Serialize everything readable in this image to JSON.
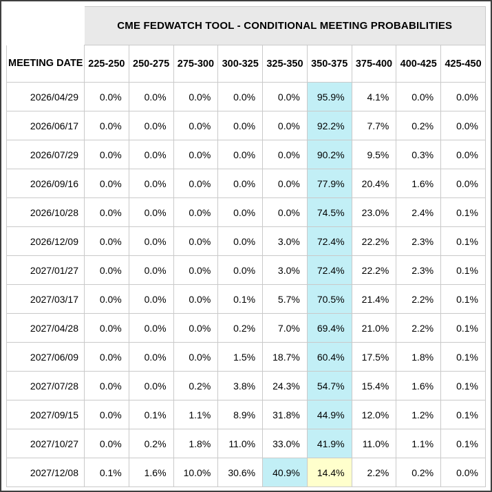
{
  "chart_data": {
    "type": "table",
    "title": "CME FEDWATCH TOOL - CONDITIONAL MEETING PROBABILITIES",
    "date_column_header": "MEETING DATE",
    "rate_bin_headers": [
      "225-250",
      "250-275",
      "275-300",
      "300-325",
      "325-350",
      "350-375",
      "375-400",
      "400-425",
      "425-450"
    ],
    "rows": [
      {
        "date": "2026/04/29",
        "values": [
          "0.0%",
          "0.0%",
          "0.0%",
          "0.0%",
          "0.0%",
          "95.9%",
          "4.1%",
          "0.0%",
          "0.0%"
        ],
        "highlights": {
          "5": "cyan"
        }
      },
      {
        "date": "2026/06/17",
        "values": [
          "0.0%",
          "0.0%",
          "0.0%",
          "0.0%",
          "0.0%",
          "92.2%",
          "7.7%",
          "0.2%",
          "0.0%"
        ],
        "highlights": {
          "5": "cyan"
        }
      },
      {
        "date": "2026/07/29",
        "values": [
          "0.0%",
          "0.0%",
          "0.0%",
          "0.0%",
          "0.0%",
          "90.2%",
          "9.5%",
          "0.3%",
          "0.0%"
        ],
        "highlights": {
          "5": "cyan"
        }
      },
      {
        "date": "2026/09/16",
        "values": [
          "0.0%",
          "0.0%",
          "0.0%",
          "0.0%",
          "0.0%",
          "77.9%",
          "20.4%",
          "1.6%",
          "0.0%"
        ],
        "highlights": {
          "5": "cyan"
        }
      },
      {
        "date": "2026/10/28",
        "values": [
          "0.0%",
          "0.0%",
          "0.0%",
          "0.0%",
          "0.0%",
          "74.5%",
          "23.0%",
          "2.4%",
          "0.1%"
        ],
        "highlights": {
          "5": "cyan"
        }
      },
      {
        "date": "2026/12/09",
        "values": [
          "0.0%",
          "0.0%",
          "0.0%",
          "0.0%",
          "3.0%",
          "72.4%",
          "22.2%",
          "2.3%",
          "0.1%"
        ],
        "highlights": {
          "5": "cyan"
        }
      },
      {
        "date": "2027/01/27",
        "values": [
          "0.0%",
          "0.0%",
          "0.0%",
          "0.0%",
          "3.0%",
          "72.4%",
          "22.2%",
          "2.3%",
          "0.1%"
        ],
        "highlights": {
          "5": "cyan"
        }
      },
      {
        "date": "2027/03/17",
        "values": [
          "0.0%",
          "0.0%",
          "0.0%",
          "0.1%",
          "5.7%",
          "70.5%",
          "21.4%",
          "2.2%",
          "0.1%"
        ],
        "highlights": {
          "5": "cyan"
        }
      },
      {
        "date": "2027/04/28",
        "values": [
          "0.0%",
          "0.0%",
          "0.0%",
          "0.2%",
          "7.0%",
          "69.4%",
          "21.0%",
          "2.2%",
          "0.1%"
        ],
        "highlights": {
          "5": "cyan"
        }
      },
      {
        "date": "2027/06/09",
        "values": [
          "0.0%",
          "0.0%",
          "0.0%",
          "1.5%",
          "18.7%",
          "60.4%",
          "17.5%",
          "1.8%",
          "0.1%"
        ],
        "highlights": {
          "5": "cyan"
        }
      },
      {
        "date": "2027/07/28",
        "values": [
          "0.0%",
          "0.0%",
          "0.2%",
          "3.8%",
          "24.3%",
          "54.7%",
          "15.4%",
          "1.6%",
          "0.1%"
        ],
        "highlights": {
          "5": "cyan"
        }
      },
      {
        "date": "2027/09/15",
        "values": [
          "0.0%",
          "0.1%",
          "1.1%",
          "8.9%",
          "31.8%",
          "44.9%",
          "12.0%",
          "1.2%",
          "0.1%"
        ],
        "highlights": {
          "5": "cyan"
        }
      },
      {
        "date": "2027/10/27",
        "values": [
          "0.0%",
          "0.2%",
          "1.8%",
          "11.0%",
          "33.0%",
          "41.9%",
          "11.0%",
          "1.1%",
          "0.1%"
        ],
        "highlights": {
          "5": "cyan"
        }
      },
      {
        "date": "2027/12/08",
        "values": [
          "0.1%",
          "1.6%",
          "10.0%",
          "30.6%",
          "40.9%",
          "14.4%",
          "2.2%",
          "0.2%",
          "0.0%"
        ],
        "highlights": {
          "4": "cyan",
          "5": "yellow"
        }
      }
    ]
  },
  "colors": {
    "highlight_cyan": "#c2eff6",
    "highlight_yellow": "#ffffcc",
    "title_bg": "#e9e9e9",
    "grid_line": "#c9c9c9"
  }
}
